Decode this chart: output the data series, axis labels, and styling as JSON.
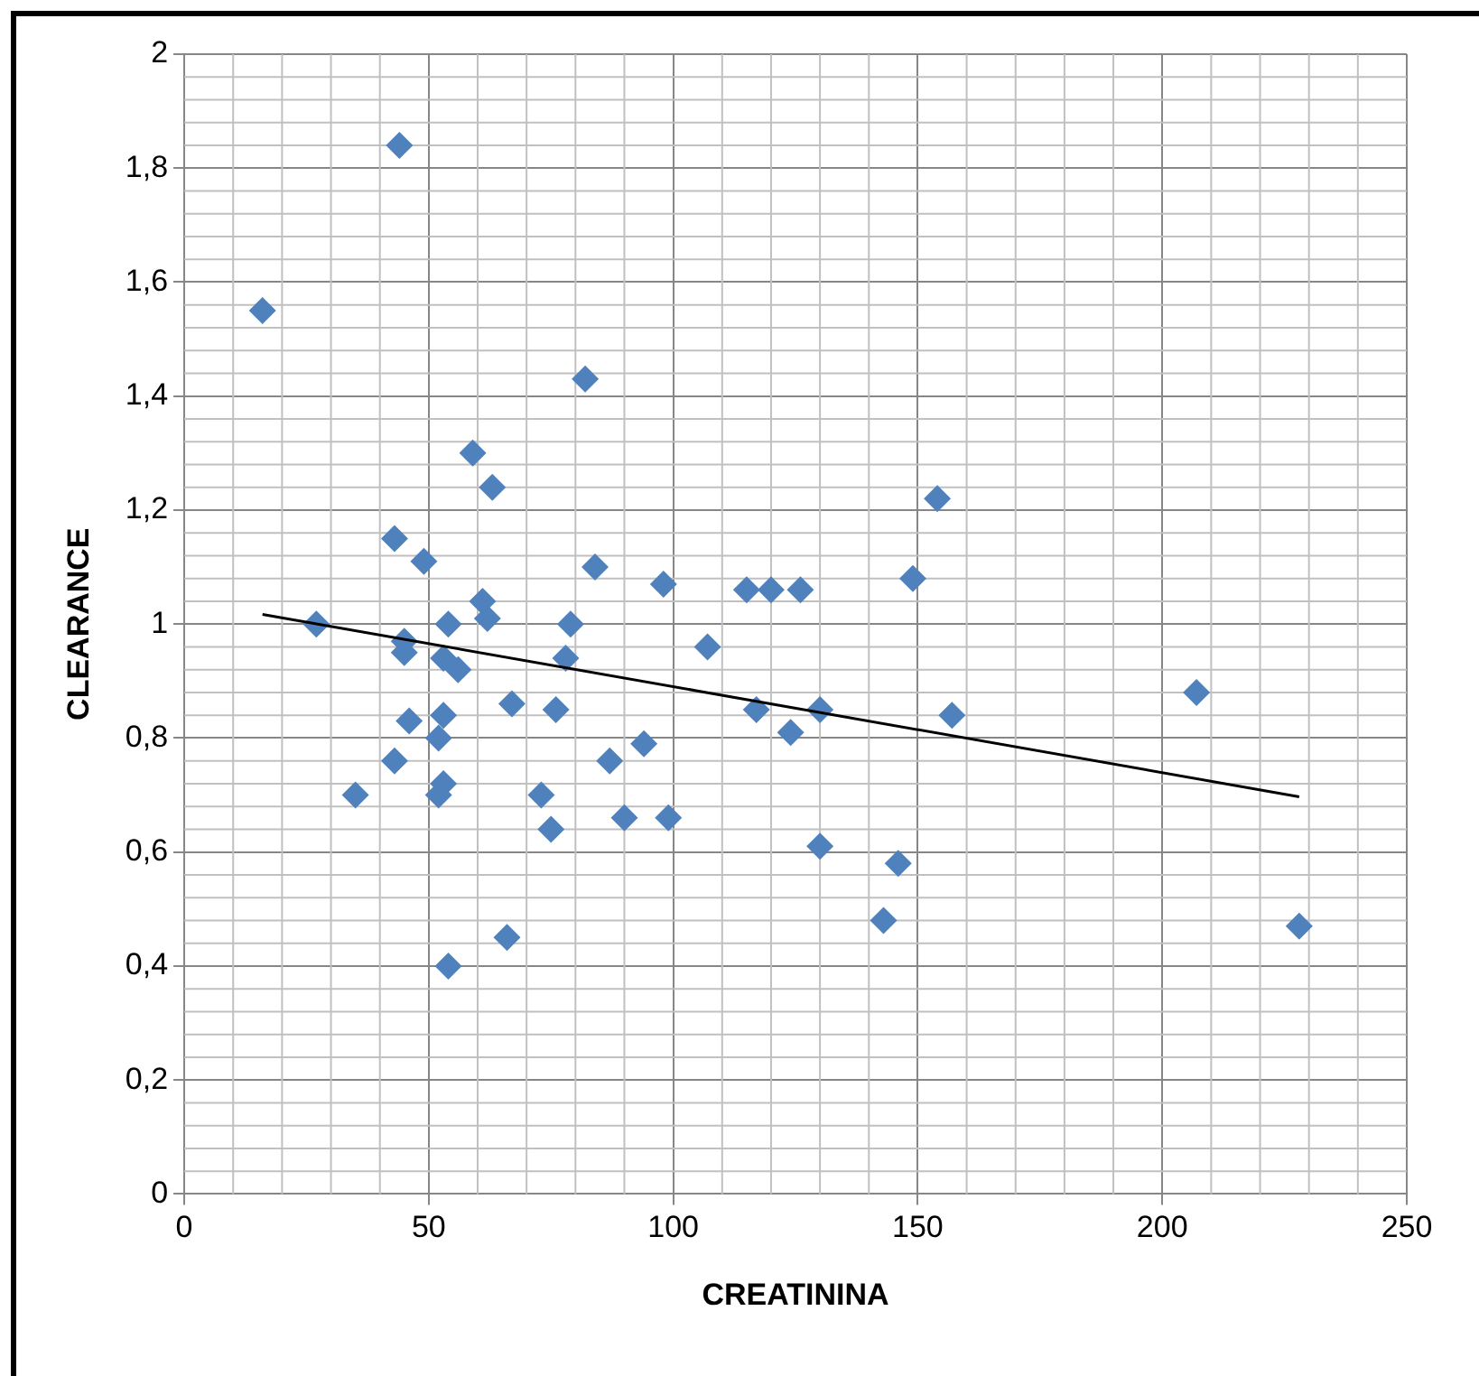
{
  "chart_data": {
    "type": "scatter",
    "xlabel": "CREATININA",
    "ylabel": "CLEARANCE",
    "marker": "diamond",
    "grid": true,
    "legend": false,
    "xlim": [
      0,
      250
    ],
    "xticks": [
      0,
      50,
      100,
      150,
      200,
      250
    ],
    "ylim": [
      0,
      2
    ],
    "yticks": [
      0,
      {
        "value": 0.2,
        "label": "0,2"
      },
      {
        "value": 0.4,
        "label": "0,4"
      },
      {
        "value": 0.6,
        "label": "0,6"
      },
      {
        "value": 0.8,
        "label": "0,8"
      },
      1,
      {
        "value": 1.2,
        "label": "1,2"
      },
      {
        "value": 1.4,
        "label": "1,4"
      },
      {
        "value": 1.6,
        "label": "1,6"
      },
      {
        "value": 1.8,
        "label": "1,8"
      },
      2
    ],
    "series": [
      {
        "color": "#4f81bd",
        "x": [
          16,
          44,
          59,
          82,
          63,
          43,
          49,
          84,
          27,
          61,
          62,
          54,
          79,
          98,
          45,
          45,
          53,
          56,
          78,
          107,
          115,
          120,
          126,
          149,
          154,
          67,
          76,
          46,
          53,
          52,
          117,
          130,
          124,
          157,
          87,
          94,
          43,
          35,
          73,
          53,
          52,
          75,
          90,
          99,
          130,
          146,
          143,
          66,
          54,
          207,
          228
        ],
        "values": [
          1.55,
          1.84,
          1.3,
          1.43,
          1.24,
          1.15,
          1.11,
          1.1,
          1.0,
          1.04,
          1.01,
          1.0,
          1.0,
          1.07,
          0.97,
          0.95,
          0.94,
          0.92,
          0.94,
          0.96,
          1.06,
          1.06,
          1.06,
          1.08,
          1.22,
          0.86,
          0.85,
          0.83,
          0.84,
          0.8,
          0.85,
          0.85,
          0.81,
          0.84,
          0.76,
          0.79,
          0.76,
          0.7,
          0.7,
          0.72,
          0.7,
          0.64,
          0.66,
          0.66,
          0.61,
          0.58,
          0.48,
          0.45,
          0.4,
          0.88,
          0.47
        ]
      },
      {
        "type": "line",
        "color": "#000000",
        "marker": "none",
        "x": [
          16,
          228
        ],
        "values": [
          1.017,
          0.697
        ]
      }
    ]
  }
}
